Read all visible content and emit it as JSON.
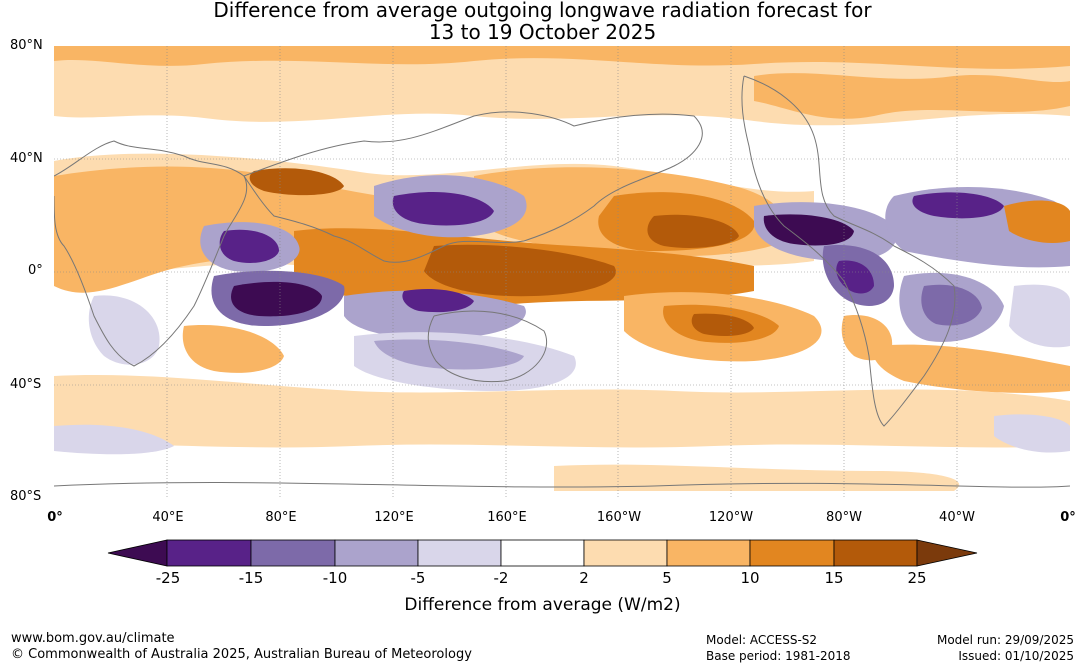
{
  "title": {
    "line1": "Difference from average outgoing longwave radiation forecast for",
    "line2": "13 to 19 October 2025"
  },
  "latitude_labels": [
    "80°N",
    "40°N",
    "0°",
    "40°S",
    "80°S"
  ],
  "longitude_labels": [
    "0°",
    "40°E",
    "80°E",
    "120°E",
    "160°E",
    "160°W",
    "120°W",
    "80°W",
    "40°W",
    "0°"
  ],
  "colorbar": {
    "label": "Difference from average (W/m2)",
    "ticks": [
      "-25",
      "-15",
      "-10",
      "-5",
      "-2",
      "2",
      "5",
      "10",
      "15",
      "25"
    ],
    "colors": [
      "#3d0b52",
      "#582288",
      "#7d6aa9",
      "#aba3cc",
      "#d9d6ea",
      "#ffffff",
      "#fddcb0",
      "#f9b564",
      "#e28620",
      "#b35a0a",
      "#7b3a0c"
    ]
  },
  "footer": {
    "url": "www.bom.gov.au/climate",
    "copyright": "© Commonwealth of Australia 2025, Australian Bureau of Meteorology",
    "model": "Model: ACCESS-S2",
    "base_period": "Base period: 1981-2018",
    "model_run": "Model run: 29/09/2025",
    "issued": "Issued: 01/10/2025"
  }
}
